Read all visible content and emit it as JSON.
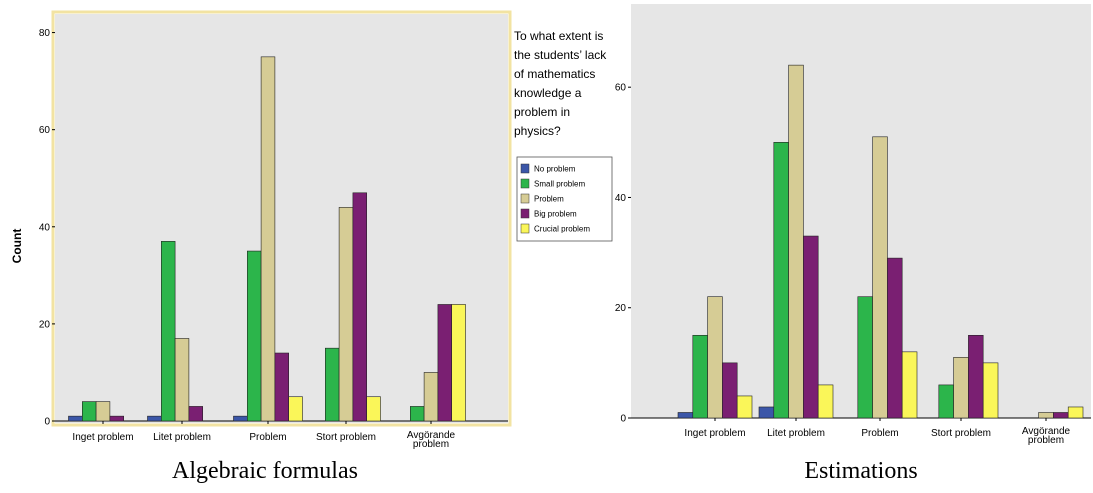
{
  "legend": {
    "title": [
      "To what extent is",
      "the students’ lack",
      "of mathematics",
      "knowledge a",
      "problem in",
      "physics?"
    ],
    "entries": [
      {
        "label": "No problem",
        "color": "#3B56A8"
      },
      {
        "label": "Small problem",
        "color": "#2CB54B"
      },
      {
        "label": "Problem",
        "color": "#D6CC95"
      },
      {
        "label": "Big problem",
        "color": "#7A1F72"
      },
      {
        "label": "Crucial problem",
        "color": "#FAF659"
      }
    ]
  },
  "chart_data": [
    {
      "type": "bar",
      "title": "Algebraic formulas",
      "ylabel": "Count",
      "xlabel": "",
      "ylim": [
        0,
        83
      ],
      "yticks": [
        0,
        20,
        40,
        60,
        80
      ],
      "categories": [
        "Inget problem",
        "Litet problem",
        "Problem",
        "Stort problem",
        "Avgörande problem"
      ],
      "series": [
        {
          "name": "No problem",
          "values": [
            1,
            1,
            1,
            0,
            0
          ]
        },
        {
          "name": "Small problem",
          "values": [
            4,
            37,
            35,
            15,
            3
          ]
        },
        {
          "name": "Problem",
          "values": [
            4,
            17,
            75,
            44,
            10
          ]
        },
        {
          "name": "Big problem",
          "values": [
            1,
            3,
            14,
            47,
            24
          ]
        },
        {
          "name": "Crucial problem",
          "values": [
            0,
            0,
            5,
            5,
            24
          ]
        }
      ]
    },
    {
      "type": "bar",
      "title": "Estimations",
      "ylabel": "",
      "xlabel": "",
      "ylim": [
        0,
        74
      ],
      "yticks": [
        0,
        20,
        40,
        60
      ],
      "categories": [
        "Inget problem",
        "Litet problem",
        "Problem",
        "Stort problem",
        "Avgörande problem"
      ],
      "series": [
        {
          "name": "No problem",
          "values": [
            1,
            2,
            0,
            0,
            0
          ]
        },
        {
          "name": "Small problem",
          "values": [
            15,
            50,
            22,
            6,
            0
          ]
        },
        {
          "name": "Problem",
          "values": [
            22,
            64,
            51,
            11,
            1
          ]
        },
        {
          "name": "Big problem",
          "values": [
            10,
            33,
            29,
            15,
            1
          ]
        },
        {
          "name": "Crucial problem",
          "values": [
            4,
            6,
            12,
            10,
            2
          ]
        }
      ]
    }
  ]
}
